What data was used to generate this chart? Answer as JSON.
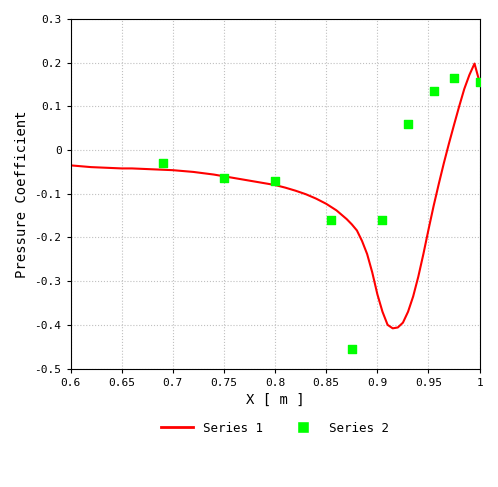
{
  "title": "",
  "xlabel": "X [ m ]",
  "ylabel": "Pressure Coefficient",
  "xlim": [
    0.6,
    1.0
  ],
  "ylim": [
    -0.5,
    0.3
  ],
  "xticks": [
    0.6,
    0.65,
    0.7,
    0.75,
    0.8,
    0.85,
    0.9,
    0.95,
    1.0
  ],
  "yticks": [
    -0.5,
    -0.4,
    -0.3,
    -0.2,
    -0.1,
    0.0,
    0.1,
    0.2,
    0.3
  ],
  "series1_x": [
    0.6,
    0.61,
    0.62,
    0.63,
    0.64,
    0.65,
    0.66,
    0.67,
    0.68,
    0.69,
    0.7,
    0.71,
    0.72,
    0.73,
    0.74,
    0.75,
    0.76,
    0.77,
    0.78,
    0.79,
    0.8,
    0.81,
    0.82,
    0.83,
    0.84,
    0.85,
    0.86,
    0.87,
    0.875,
    0.88,
    0.885,
    0.89,
    0.895,
    0.9,
    0.905,
    0.91,
    0.915,
    0.92,
    0.925,
    0.93,
    0.935,
    0.94,
    0.945,
    0.95,
    0.955,
    0.96,
    0.965,
    0.97,
    0.975,
    0.98,
    0.985,
    0.99,
    0.995,
    1.0
  ],
  "series1_y": [
    -0.035,
    -0.037,
    -0.039,
    -0.04,
    -0.041,
    -0.042,
    -0.042,
    -0.043,
    -0.044,
    -0.045,
    -0.046,
    -0.048,
    -0.05,
    -0.053,
    -0.056,
    -0.06,
    -0.064,
    -0.068,
    -0.072,
    -0.076,
    -0.08,
    -0.086,
    -0.093,
    -0.101,
    -0.111,
    -0.123,
    -0.138,
    -0.158,
    -0.17,
    -0.184,
    -0.208,
    -0.238,
    -0.28,
    -0.33,
    -0.37,
    -0.4,
    -0.408,
    -0.406,
    -0.395,
    -0.37,
    -0.335,
    -0.29,
    -0.238,
    -0.182,
    -0.128,
    -0.078,
    -0.03,
    0.015,
    0.058,
    0.1,
    0.14,
    0.172,
    0.198,
    0.155
  ],
  "series2_x": [
    0.69,
    0.75,
    0.8,
    0.855,
    0.875,
    0.905,
    0.93,
    0.955,
    0.975,
    1.0
  ],
  "series2_y": [
    -0.03,
    -0.065,
    -0.07,
    -0.16,
    -0.455,
    -0.16,
    0.06,
    0.135,
    0.165,
    0.155
  ],
  "series1_color": "#ff0000",
  "series2_color": "#00ff00",
  "series1_label": "Series 1",
  "series2_label": "Series 2",
  "grid_color": "#c0c0c0",
  "bg_color": "#ffffff"
}
